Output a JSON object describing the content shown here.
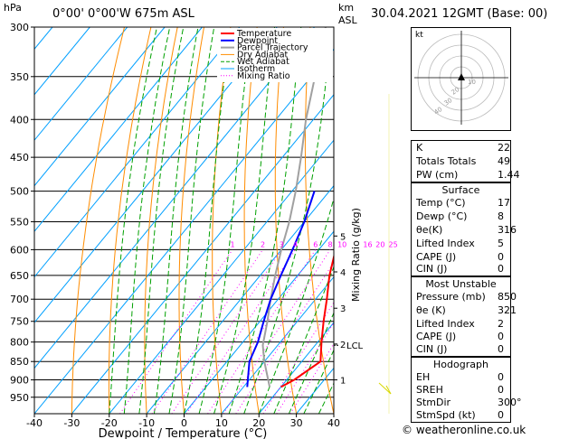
{
  "header": {
    "hpa": "hPa",
    "location": "0°00' 0°00'W 675m ASL",
    "km": "km",
    "asl": "ASL",
    "date": "30.04.2021 12GMT (Base: 00)"
  },
  "colors": {
    "temperature": "#ff0000",
    "dewpoint": "#0000ff",
    "parcel": "#a0a0a0",
    "dry_adiabat": "#ff8c00",
    "wet_adiabat": "#00a000",
    "isotherm": "#00a0ff",
    "mixing_ratio": "#ff00ff"
  },
  "chart_data": {
    "type": "skew-t",
    "xlabel": "Dewpoint / Temperature (°C)",
    "ylabel_left": "hPa",
    "ylabel_right": "Mixing Ratio (g/kg)",
    "pressure_levels": [
      300,
      350,
      400,
      450,
      500,
      550,
      600,
      650,
      700,
      750,
      800,
      850,
      900,
      950
    ],
    "x_ticks": [
      -40,
      -30,
      -20,
      -10,
      0,
      10,
      20,
      30,
      40
    ],
    "xlim": [
      -40,
      40
    ],
    "ylim": [
      300,
      1000
    ],
    "legend": [
      "Temperature",
      "Dewpoint",
      "Parcel Trajectory",
      "Dry Adiabat",
      "Wet Adiabat",
      "Isotherm",
      "Mixing Ratio"
    ],
    "legend_position": "top-right",
    "mixing_ratio_labels": [
      "1",
      "2",
      "3",
      "4",
      "6",
      "8",
      "10",
      "16",
      "20",
      "25"
    ],
    "km_ticks": [
      {
        "label": "5",
        "p": 575
      },
      {
        "label": "4",
        "p": 643
      },
      {
        "label": "3",
        "p": 720
      },
      {
        "label": "2",
        "p": 805
      },
      {
        "label": "1",
        "p": 900
      }
    ],
    "lcl_label": "LCL",
    "lcl_p": 808,
    "temperature": [
      {
        "p": 920,
        "t": 20
      },
      {
        "p": 900,
        "t": 22
      },
      {
        "p": 850,
        "t": 25
      },
      {
        "p": 800,
        "t": 21
      },
      {
        "p": 750,
        "t": 17
      },
      {
        "p": 700,
        "t": 13
      },
      {
        "p": 650,
        "t": 8.5
      },
      {
        "p": 600,
        "t": 4.5
      },
      {
        "p": 550,
        "t": 1
      },
      {
        "p": 500,
        "t": -3
      }
    ],
    "dewpoint": [
      {
        "p": 920,
        "t": 11
      },
      {
        "p": 850,
        "t": 6
      },
      {
        "p": 800,
        "t": 4
      },
      {
        "p": 750,
        "t": 1
      },
      {
        "p": 700,
        "t": -2
      },
      {
        "p": 650,
        "t": -4.5
      },
      {
        "p": 600,
        "t": -7
      },
      {
        "p": 550,
        "t": -10
      },
      {
        "p": 500,
        "t": -14
      }
    ],
    "parcel": [
      {
        "p": 920,
        "t": 17
      },
      {
        "p": 850,
        "t": 10
      },
      {
        "p": 808,
        "t": 6
      },
      {
        "p": 750,
        "t": 2
      },
      {
        "p": 700,
        "t": -2
      },
      {
        "p": 650,
        "t": -6
      },
      {
        "p": 600,
        "t": -10
      },
      {
        "p": 550,
        "t": -14
      },
      {
        "p": 500,
        "t": -19
      },
      {
        "p": 450,
        "t": -25
      },
      {
        "p": 400,
        "t": -32
      },
      {
        "p": 350,
        "t": -39
      },
      {
        "p": 300,
        "t": -47
      }
    ],
    "hodograph": {
      "label": "kt",
      "ring_labels": [
        "10",
        "20",
        "30",
        "40"
      ]
    }
  },
  "indices": {
    "rows": [
      {
        "k": "K",
        "v": "22"
      },
      {
        "k": "Totals Totals",
        "v": "49"
      },
      {
        "k": "PW (cm)",
        "v": "1.44"
      }
    ]
  },
  "surface": {
    "title": "Surface",
    "rows": [
      {
        "k": "Temp (°C)",
        "v": "17"
      },
      {
        "k": "Dewp (°C)",
        "v": "8"
      },
      {
        "k": "θe(K)",
        "v": "316"
      },
      {
        "k": "Lifted Index",
        "v": "5"
      },
      {
        "k": "CAPE (J)",
        "v": "0"
      },
      {
        "k": "CIN (J)",
        "v": "0"
      }
    ]
  },
  "most_unstable": {
    "title": "Most Unstable",
    "rows": [
      {
        "k": "Pressure (mb)",
        "v": "850"
      },
      {
        "k": "θe (K)",
        "v": "321"
      },
      {
        "k": "Lifted Index",
        "v": "2"
      },
      {
        "k": "CAPE (J)",
        "v": "0"
      },
      {
        "k": "CIN (J)",
        "v": "0"
      }
    ]
  },
  "hodograph_table": {
    "title": "Hodograph",
    "rows": [
      {
        "k": "EH",
        "v": "0"
      },
      {
        "k": "SREH",
        "v": "0"
      },
      {
        "k": "StmDir",
        "v": "300°"
      },
      {
        "k": "StmSpd (kt)",
        "v": "0"
      }
    ]
  },
  "credit": "© weatheronline.co.uk"
}
